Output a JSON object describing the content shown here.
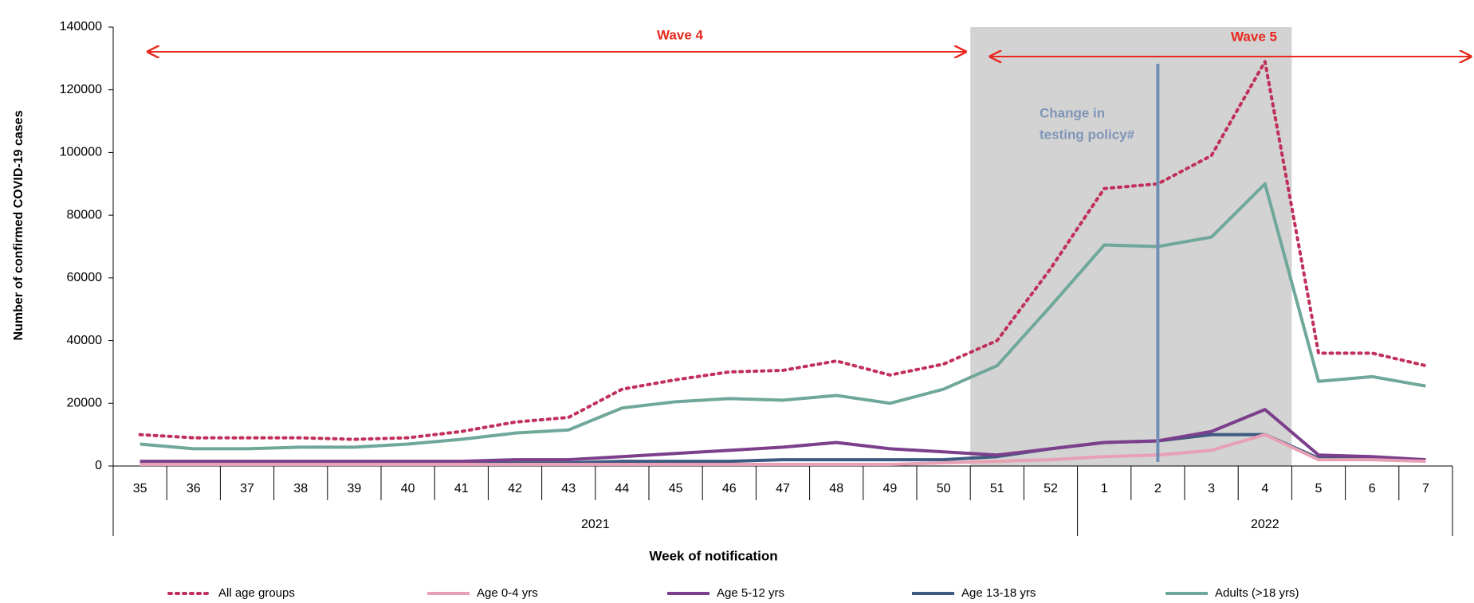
{
  "chart_data": {
    "type": "line",
    "y_label": "Number of confirmed COVID-19 cases",
    "x_label": "Week of notification",
    "categories": [
      "35",
      "36",
      "37",
      "38",
      "39",
      "40",
      "41",
      "42",
      "43",
      "44",
      "45",
      "46",
      "47",
      "48",
      "49",
      "50",
      "51",
      "52",
      "1",
      "2",
      "3",
      "4",
      "5",
      "6",
      "7"
    ],
    "year_labels": [
      "2021",
      "2022"
    ],
    "annotations": [
      "Wave 4",
      "Wave 5"
    ],
    "policy_note": [
      "Change in",
      "testing policy#"
    ],
    "ylim": [
      0,
      140000
    ],
    "yticks": [
      0,
      20000,
      40000,
      60000,
      80000,
      100000,
      120000,
      140000
    ],
    "series": [
      {
        "name": "All age groups",
        "color": "#c0305a",
        "dashed": true,
        "values": [
          10000,
          9000,
          9000,
          9000,
          8500,
          9000,
          11000,
          14000,
          15500,
          24500,
          27500,
          30000,
          30500,
          33500,
          29000,
          32500,
          40000,
          63000,
          88500,
          90000,
          99000,
          129000,
          36000,
          36000,
          32000
        ]
      },
      {
        "name": "Age 0-4 yrs",
        "color": "#e8a0b4",
        "values": [
          500,
          500,
          500,
          500,
          500,
          500,
          500,
          500,
          500,
          500,
          500,
          500,
          500,
          500,
          500,
          1000,
          1500,
          2000,
          3000,
          3500,
          5000,
          10000,
          2000,
          2000,
          1500
        ]
      },
      {
        "name": "Age 5-12 yrs",
        "color": "#7b3f8c",
        "values": [
          1500,
          1500,
          1500,
          1500,
          1500,
          1500,
          1500,
          2000,
          2000,
          3000,
          4000,
          5000,
          6000,
          7500,
          5500,
          4500,
          3500,
          5500,
          7500,
          8000,
          11000,
          18000,
          3500,
          3000,
          2000
        ]
      },
      {
        "name": "Age 13-18 yrs",
        "color": "#3e5a80",
        "values": [
          1000,
          1000,
          1000,
          1000,
          1000,
          1000,
          1000,
          1000,
          1000,
          1500,
          1500,
          1500,
          2000,
          2000,
          2000,
          2000,
          3000,
          5500,
          7500,
          8000,
          10000,
          10000,
          2500,
          2500,
          2000
        ]
      },
      {
        "name": "Adults (>18 yrs)",
        "color": "#6fa89a",
        "values": [
          7000,
          5500,
          5500,
          6000,
          6000,
          7000,
          8500,
          10500,
          11500,
          18500,
          20500,
          21500,
          21000,
          22500,
          20000,
          24500,
          32000,
          51000,
          70500,
          70000,
          73000,
          90000,
          27000,
          28500,
          25500
        ]
      }
    ]
  }
}
